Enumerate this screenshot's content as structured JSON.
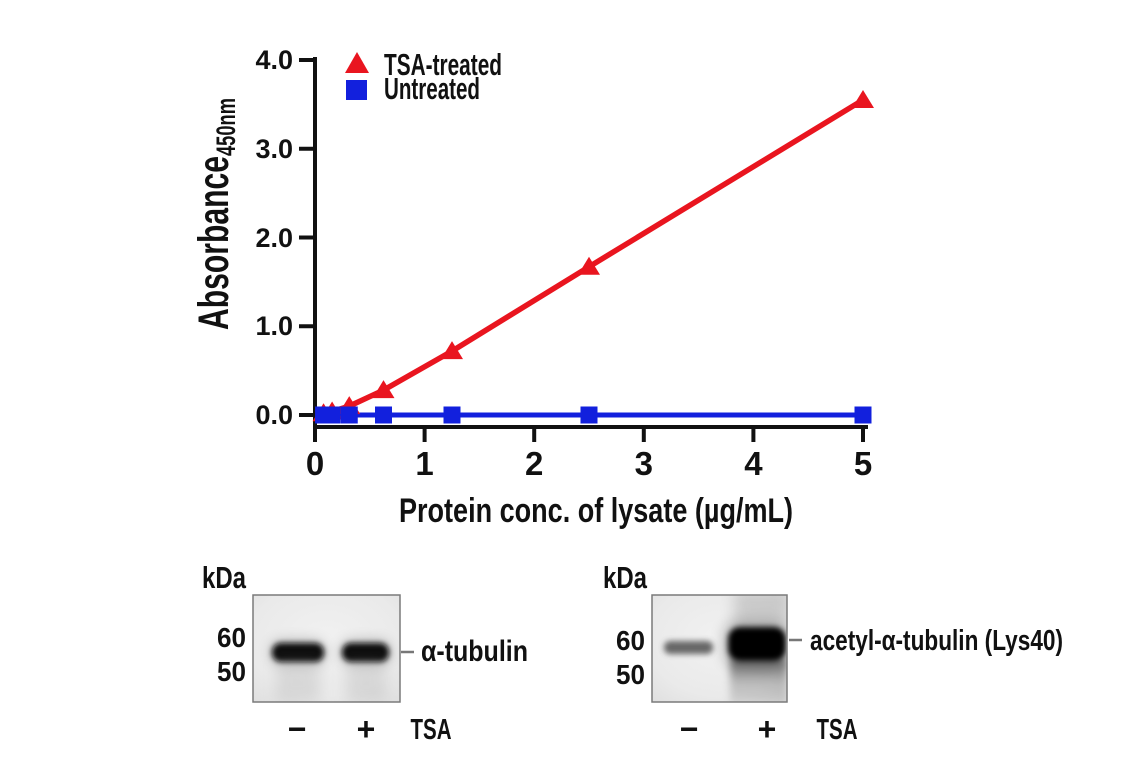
{
  "chart_data": {
    "type": "line",
    "title": "",
    "xlabel": "Protein conc. of lysate (µg/mL)",
    "ylabel": "Absorbance",
    "ylabel_subscript": "450nm",
    "xlim": [
      0,
      5
    ],
    "ylim": [
      0.0,
      4.0
    ],
    "xtick_labels": [
      "0",
      "1",
      "2",
      "3",
      "4",
      "5"
    ],
    "ytick_labels": [
      "0.0",
      "1.0",
      "2.0",
      "3.0",
      "4.0"
    ],
    "grid": false,
    "legend_position": "top-left-inside",
    "series": [
      {
        "name": "TSA-treated",
        "color": "#e9151f",
        "marker": "triangle",
        "x": [
          0.078,
          0.156,
          0.3125,
          0.625,
          1.25,
          2.5,
          5.0
        ],
        "y": [
          0.02,
          0.04,
          0.1,
          0.28,
          0.72,
          1.67,
          3.55
        ]
      },
      {
        "name": "Untreated",
        "color": "#1220dd",
        "marker": "square",
        "x": [
          0.078,
          0.156,
          0.3125,
          0.625,
          1.25,
          2.5,
          5.0
        ],
        "y": [
          0.0,
          0.0,
          0.0,
          0.0,
          0.0,
          0.0,
          0.0
        ]
      }
    ]
  },
  "blots": {
    "kda": "kDa",
    "left": {
      "markers": [
        "60",
        "50"
      ],
      "label": "α-tubulin",
      "treatment": "TSA",
      "lanes": [
        {
          "sign": "−",
          "band": "strong",
          "band_color": "#070707"
        },
        {
          "sign": "+",
          "band": "strong",
          "band_color": "#070707"
        }
      ]
    },
    "right": {
      "markers": [
        "60",
        "50"
      ],
      "label": "acetyl-α-tubulin (Lys40)",
      "treatment": "TSA",
      "lanes": [
        {
          "sign": "−",
          "band": "faint",
          "band_color": "#4f4f4f"
        },
        {
          "sign": "+",
          "band": "very-strong",
          "band_color": "#050505"
        }
      ]
    }
  }
}
